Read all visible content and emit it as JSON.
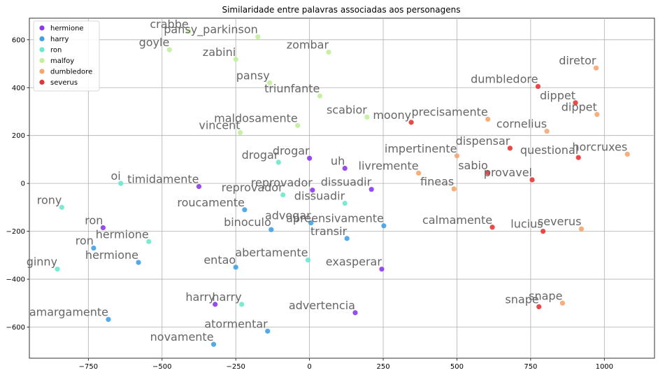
{
  "chart_data": {
    "type": "scatter",
    "title": "Similaridade entre palavras associadas aos personagens",
    "xlabel": "",
    "ylabel": "",
    "xlim": [
      -950,
      1170
    ],
    "ylim": [
      -730,
      690
    ],
    "xticks": [
      -750,
      -500,
      -250,
      0,
      250,
      500,
      750,
      1000
    ],
    "xtick_labels": [
      "−750",
      "−500",
      "−250",
      "0",
      "250",
      "500",
      "750",
      "1000"
    ],
    "yticks": [
      -600,
      -400,
      -200,
      0,
      200,
      400,
      600
    ],
    "ytick_labels": [
      "−600",
      "−400",
      "−200",
      "0",
      "200",
      "400",
      "600"
    ],
    "grid": true,
    "legend_position": "top-left",
    "series": [
      {
        "name": "hermione",
        "color": "#8b38f0",
        "points": [
          {
            "label": "drogar",
            "x": 0,
            "y": 105
          },
          {
            "label": "uh",
            "x": 120,
            "y": 63
          },
          {
            "label": "timidamente",
            "x": -375,
            "y": -13
          },
          {
            "label": "dissuadir",
            "x": 210,
            "y": -25
          },
          {
            "label": "reprovador",
            "x": 10,
            "y": -28
          },
          {
            "label": "ron",
            "x": -700,
            "y": -185
          },
          {
            "label": "exasperar",
            "x": 245,
            "y": -358
          },
          {
            "label": "harry",
            "x": -320,
            "y": -505
          },
          {
            "label": "advertencia",
            "x": 155,
            "y": -540
          }
        ]
      },
      {
        "name": "harry",
        "color": "#3fa1e5",
        "points": [
          {
            "label": "roucamente",
            "x": -220,
            "y": -110
          },
          {
            "label": "advogar",
            "x": 5,
            "y": -165
          },
          {
            "label": "apreensivamente",
            "x": 252,
            "y": -177
          },
          {
            "label": "binoculo",
            "x": -130,
            "y": -193
          },
          {
            "label": "transir",
            "x": 127,
            "y": -230
          },
          {
            "label": "ron",
            "x": -732,
            "y": -270
          },
          {
            "label": "hermione",
            "x": -580,
            "y": -330
          },
          {
            "label": "entao",
            "x": -250,
            "y": -350
          },
          {
            "label": "amargamente",
            "x": -682,
            "y": -568
          },
          {
            "label": "atormentar",
            "x": -142,
            "y": -617
          },
          {
            "label": "novamente",
            "x": -325,
            "y": -672
          }
        ]
      },
      {
        "name": "ron",
        "color": "#6de8d0",
        "points": [
          {
            "label": "drogar",
            "x": -105,
            "y": 88
          },
          {
            "label": "oi",
            "x": -640,
            "y": 0
          },
          {
            "label": "reprovador",
            "x": -90,
            "y": -48
          },
          {
            "label": "dissuadir",
            "x": 120,
            "y": -83
          },
          {
            "label": "rony",
            "x": -840,
            "y": -100
          },
          {
            "label": "hermione",
            "x": -545,
            "y": -243
          },
          {
            "label": "abertamente",
            "x": -5,
            "y": -320
          },
          {
            "label": "ginny",
            "x": -855,
            "y": -358
          },
          {
            "label": "harry",
            "x": -230,
            "y": -505
          }
        ]
      },
      {
        "name": "malfoy",
        "color": "#c0f09a",
        "points": [
          {
            "label": "crabbe",
            "x": -410,
            "y": 635
          },
          {
            "label": "pansy_parkinson",
            "x": -175,
            "y": 612
          },
          {
            "label": "goyle",
            "x": -475,
            "y": 558
          },
          {
            "label": "zabini",
            "x": -250,
            "y": 518
          },
          {
            "label": "zombar",
            "x": 65,
            "y": 548
          },
          {
            "label": "pansy",
            "x": -135,
            "y": 420
          },
          {
            "label": "triunfante",
            "x": 35,
            "y": 365
          },
          {
            "label": "scabior",
            "x": 195,
            "y": 277
          },
          {
            "label": "maldosamente",
            "x": -40,
            "y": 242
          },
          {
            "label": "vincent",
            "x": -235,
            "y": 212
          }
        ]
      },
      {
        "name": "dumbledore",
        "color": "#f5a56e",
        "points": [
          {
            "label": "diretor",
            "x": 972,
            "y": 482
          },
          {
            "label": "dippet",
            "x": 975,
            "y": 288
          },
          {
            "label": "precisamente",
            "x": 605,
            "y": 268
          },
          {
            "label": "cornelius",
            "x": 805,
            "y": 218
          },
          {
            "label": "impertinente",
            "x": 500,
            "y": 115
          },
          {
            "label": "horcruxes",
            "x": 1078,
            "y": 122
          },
          {
            "label": "livremente",
            "x": 370,
            "y": 43
          },
          {
            "label": "fineas",
            "x": 490,
            "y": -23
          },
          {
            "label": "severus",
            "x": 922,
            "y": -190
          },
          {
            "label": "snape",
            "x": 858,
            "y": -500
          }
        ]
      },
      {
        "name": "severus",
        "color": "#e93434",
        "points": [
          {
            "label": "dumbledore",
            "x": 775,
            "y": 405
          },
          {
            "label": "dippet",
            "x": 902,
            "y": 337
          },
          {
            "label": "moony",
            "x": 345,
            "y": 255
          },
          {
            "label": "dispensar",
            "x": 680,
            "y": 147
          },
          {
            "label": "questional",
            "x": 912,
            "y": 108
          },
          {
            "label": "sabio",
            "x": 605,
            "y": 45
          },
          {
            "label": "provavel",
            "x": 755,
            "y": 15
          },
          {
            "label": "calmamente",
            "x": 620,
            "y": -183
          },
          {
            "label": "lucius",
            "x": 792,
            "y": -200
          },
          {
            "label": "snape",
            "x": 778,
            "y": -515
          }
        ]
      }
    ]
  }
}
